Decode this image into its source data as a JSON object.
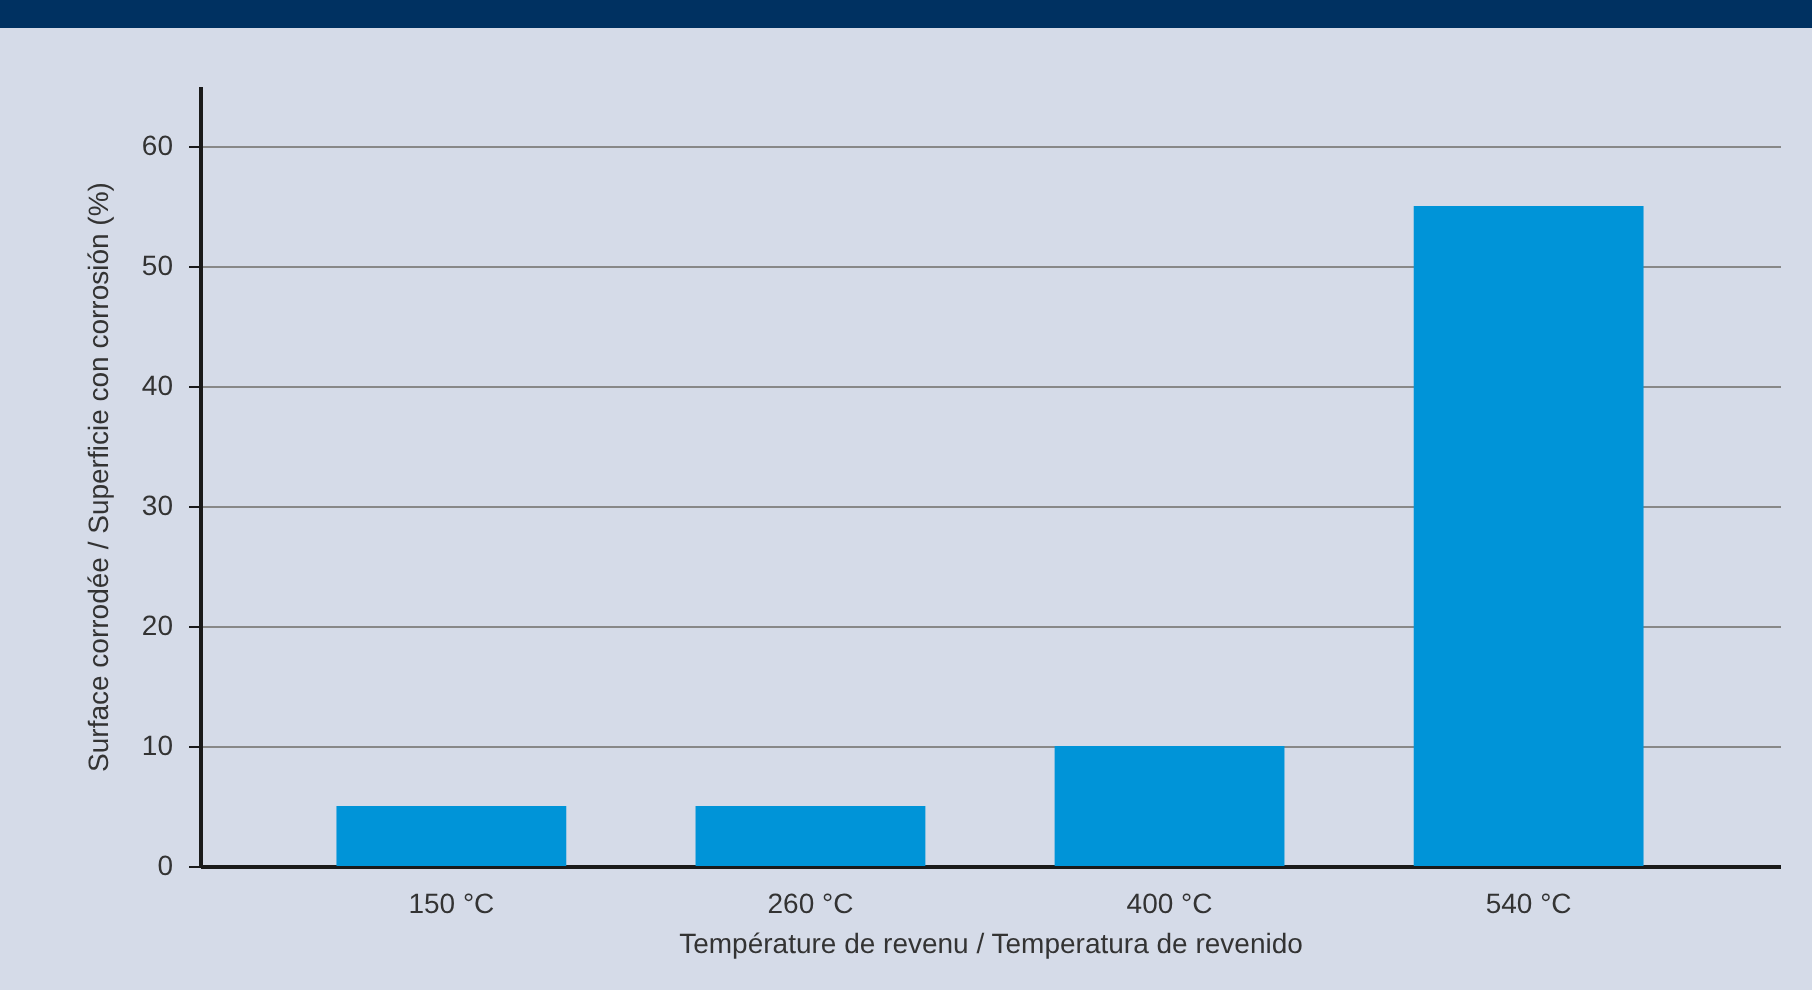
{
  "chart_data": {
    "type": "bar",
    "xlabel": "Température de revenu / Temperatura de revenido",
    "ylabel": "Surface corrodée / Superficie con corrosión (%)",
    "categories": [
      "150 °C",
      "260 °C",
      "400 °C",
      "540 °C"
    ],
    "values": [
      5,
      5,
      10,
      55
    ],
    "color": "#0094d8",
    "ylim": [
      0,
      65
    ],
    "yticks": [
      0,
      10,
      20,
      30,
      40,
      50,
      60
    ],
    "grid": "y"
  }
}
